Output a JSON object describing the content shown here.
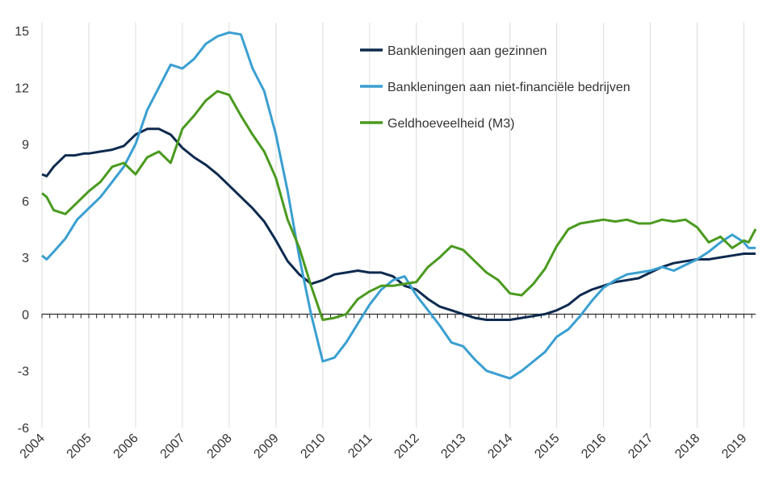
{
  "chart_data": {
    "type": "line",
    "title": "",
    "xlabel": "",
    "ylabel": "",
    "ylim": [
      -6,
      15
    ],
    "yticks": [
      15,
      12,
      9,
      6,
      3,
      0,
      -3,
      -6
    ],
    "xlim": [
      2004,
      2019.25
    ],
    "xticks": [
      "2004",
      "2005",
      "2006",
      "2007",
      "2008",
      "2009",
      "2010",
      "2011",
      "2012",
      "2013",
      "2014",
      "2015",
      "2016",
      "2017",
      "2018",
      "2019"
    ],
    "grid": "vertical",
    "legend": "top-center",
    "series": [
      {
        "name": "Bankleningen aan gezinnen",
        "color": "#0e2a4f",
        "points": [
          [
            2004.0,
            7.4
          ],
          [
            2004.1,
            7.3
          ],
          [
            2004.25,
            7.8
          ],
          [
            2004.5,
            8.4
          ],
          [
            2004.7,
            8.4
          ],
          [
            2004.9,
            8.5
          ],
          [
            2005.0,
            8.5
          ],
          [
            2005.25,
            8.6
          ],
          [
            2005.5,
            8.7
          ],
          [
            2005.75,
            8.9
          ],
          [
            2006.0,
            9.5
          ],
          [
            2006.25,
            9.8
          ],
          [
            2006.5,
            9.8
          ],
          [
            2006.75,
            9.5
          ],
          [
            2007.0,
            8.8
          ],
          [
            2007.25,
            8.3
          ],
          [
            2007.5,
            7.9
          ],
          [
            2007.75,
            7.4
          ],
          [
            2008.0,
            6.8
          ],
          [
            2008.25,
            6.2
          ],
          [
            2008.5,
            5.6
          ],
          [
            2008.75,
            4.9
          ],
          [
            2009.0,
            3.9
          ],
          [
            2009.25,
            2.8
          ],
          [
            2009.5,
            2.1
          ],
          [
            2009.75,
            1.6
          ],
          [
            2010.0,
            1.8
          ],
          [
            2010.25,
            2.1
          ],
          [
            2010.5,
            2.2
          ],
          [
            2010.75,
            2.3
          ],
          [
            2011.0,
            2.2
          ],
          [
            2011.25,
            2.2
          ],
          [
            2011.5,
            2.0
          ],
          [
            2011.75,
            1.5
          ],
          [
            2012.0,
            1.3
          ],
          [
            2012.25,
            0.8
          ],
          [
            2012.5,
            0.4
          ],
          [
            2012.75,
            0.2
          ],
          [
            2013.0,
            0.0
          ],
          [
            2013.25,
            -0.2
          ],
          [
            2013.5,
            -0.3
          ],
          [
            2013.75,
            -0.3
          ],
          [
            2014.0,
            -0.3
          ],
          [
            2014.25,
            -0.2
          ],
          [
            2014.5,
            -0.1
          ],
          [
            2014.75,
            0.0
          ],
          [
            2015.0,
            0.2
          ],
          [
            2015.25,
            0.5
          ],
          [
            2015.5,
            1.0
          ],
          [
            2015.75,
            1.3
          ],
          [
            2016.0,
            1.5
          ],
          [
            2016.25,
            1.7
          ],
          [
            2016.5,
            1.8
          ],
          [
            2016.75,
            1.9
          ],
          [
            2017.0,
            2.2
          ],
          [
            2017.25,
            2.5
          ],
          [
            2017.5,
            2.7
          ],
          [
            2017.75,
            2.8
          ],
          [
            2018.0,
            2.9
          ],
          [
            2018.25,
            2.9
          ],
          [
            2018.5,
            3.0
          ],
          [
            2018.75,
            3.1
          ],
          [
            2019.0,
            3.2
          ],
          [
            2019.25,
            3.2
          ]
        ]
      },
      {
        "name": "Bankleningen aan niet-financiële bedrijven",
        "color": "#3a9fd1",
        "points": [
          [
            2004.0,
            3.1
          ],
          [
            2004.1,
            2.9
          ],
          [
            2004.25,
            3.3
          ],
          [
            2004.5,
            4.0
          ],
          [
            2004.75,
            5.0
          ],
          [
            2005.0,
            5.6
          ],
          [
            2005.25,
            6.2
          ],
          [
            2005.5,
            7.0
          ],
          [
            2005.75,
            7.8
          ],
          [
            2006.0,
            9.0
          ],
          [
            2006.25,
            10.8
          ],
          [
            2006.5,
            12.0
          ],
          [
            2006.75,
            13.2
          ],
          [
            2007.0,
            13.0
          ],
          [
            2007.25,
            13.5
          ],
          [
            2007.5,
            14.3
          ],
          [
            2007.75,
            14.7
          ],
          [
            2008.0,
            14.9
          ],
          [
            2008.25,
            14.8
          ],
          [
            2008.5,
            13.0
          ],
          [
            2008.75,
            11.8
          ],
          [
            2009.0,
            9.5
          ],
          [
            2009.25,
            6.5
          ],
          [
            2009.5,
            3.0
          ],
          [
            2009.75,
            0.0
          ],
          [
            2010.0,
            -2.5
          ],
          [
            2010.25,
            -2.3
          ],
          [
            2010.5,
            -1.5
          ],
          [
            2010.75,
            -0.5
          ],
          [
            2011.0,
            0.5
          ],
          [
            2011.25,
            1.3
          ],
          [
            2011.5,
            1.8
          ],
          [
            2011.75,
            2.0
          ],
          [
            2012.0,
            1.0
          ],
          [
            2012.25,
            0.2
          ],
          [
            2012.5,
            -0.6
          ],
          [
            2012.75,
            -1.5
          ],
          [
            2013.0,
            -1.7
          ],
          [
            2013.25,
            -2.4
          ],
          [
            2013.5,
            -3.0
          ],
          [
            2013.75,
            -3.2
          ],
          [
            2014.0,
            -3.4
          ],
          [
            2014.25,
            -3.0
          ],
          [
            2014.5,
            -2.5
          ],
          [
            2014.75,
            -2.0
          ],
          [
            2015.0,
            -1.2
          ],
          [
            2015.25,
            -0.8
          ],
          [
            2015.5,
            -0.1
          ],
          [
            2015.75,
            0.7
          ],
          [
            2016.0,
            1.4
          ],
          [
            2016.25,
            1.8
          ],
          [
            2016.5,
            2.1
          ],
          [
            2016.75,
            2.2
          ],
          [
            2017.0,
            2.3
          ],
          [
            2017.25,
            2.5
          ],
          [
            2017.5,
            2.3
          ],
          [
            2017.75,
            2.6
          ],
          [
            2018.0,
            2.9
          ],
          [
            2018.25,
            3.3
          ],
          [
            2018.5,
            3.8
          ],
          [
            2018.75,
            4.2
          ],
          [
            2019.0,
            3.8
          ],
          [
            2019.1,
            3.5
          ],
          [
            2019.25,
            3.5
          ]
        ]
      },
      {
        "name": "Geldhoeveelheid (M3)",
        "color": "#4a9a1f",
        "points": [
          [
            2004.0,
            6.4
          ],
          [
            2004.1,
            6.2
          ],
          [
            2004.25,
            5.5
          ],
          [
            2004.5,
            5.3
          ],
          [
            2004.75,
            5.9
          ],
          [
            2005.0,
            6.5
          ],
          [
            2005.25,
            7.0
          ],
          [
            2005.5,
            7.8
          ],
          [
            2005.75,
            8.0
          ],
          [
            2006.0,
            7.4
          ],
          [
            2006.25,
            8.3
          ],
          [
            2006.5,
            8.6
          ],
          [
            2006.75,
            8.0
          ],
          [
            2007.0,
            9.8
          ],
          [
            2007.25,
            10.5
          ],
          [
            2007.5,
            11.3
          ],
          [
            2007.75,
            11.8
          ],
          [
            2008.0,
            11.6
          ],
          [
            2008.25,
            10.5
          ],
          [
            2008.5,
            9.5
          ],
          [
            2008.75,
            8.6
          ],
          [
            2009.0,
            7.2
          ],
          [
            2009.25,
            5.0
          ],
          [
            2009.5,
            3.5
          ],
          [
            2009.75,
            1.5
          ],
          [
            2010.0,
            -0.3
          ],
          [
            2010.25,
            -0.2
          ],
          [
            2010.5,
            0.0
          ],
          [
            2010.75,
            0.8
          ],
          [
            2011.0,
            1.2
          ],
          [
            2011.25,
            1.5
          ],
          [
            2011.5,
            1.5
          ],
          [
            2011.75,
            1.6
          ],
          [
            2012.0,
            1.7
          ],
          [
            2012.25,
            2.5
          ],
          [
            2012.5,
            3.0
          ],
          [
            2012.75,
            3.6
          ],
          [
            2013.0,
            3.4
          ],
          [
            2013.25,
            2.8
          ],
          [
            2013.5,
            2.2
          ],
          [
            2013.75,
            1.8
          ],
          [
            2014.0,
            1.1
          ],
          [
            2014.25,
            1.0
          ],
          [
            2014.5,
            1.6
          ],
          [
            2014.75,
            2.4
          ],
          [
            2015.0,
            3.6
          ],
          [
            2015.25,
            4.5
          ],
          [
            2015.5,
            4.8
          ],
          [
            2015.75,
            4.9
          ],
          [
            2016.0,
            5.0
          ],
          [
            2016.25,
            4.9
          ],
          [
            2016.5,
            5.0
          ],
          [
            2016.75,
            4.8
          ],
          [
            2017.0,
            4.8
          ],
          [
            2017.25,
            5.0
          ],
          [
            2017.5,
            4.9
          ],
          [
            2017.75,
            5.0
          ],
          [
            2018.0,
            4.6
          ],
          [
            2018.25,
            3.8
          ],
          [
            2018.5,
            4.1
          ],
          [
            2018.75,
            3.5
          ],
          [
            2019.0,
            3.9
          ],
          [
            2019.1,
            3.8
          ],
          [
            2019.25,
            4.5
          ]
        ]
      }
    ]
  }
}
